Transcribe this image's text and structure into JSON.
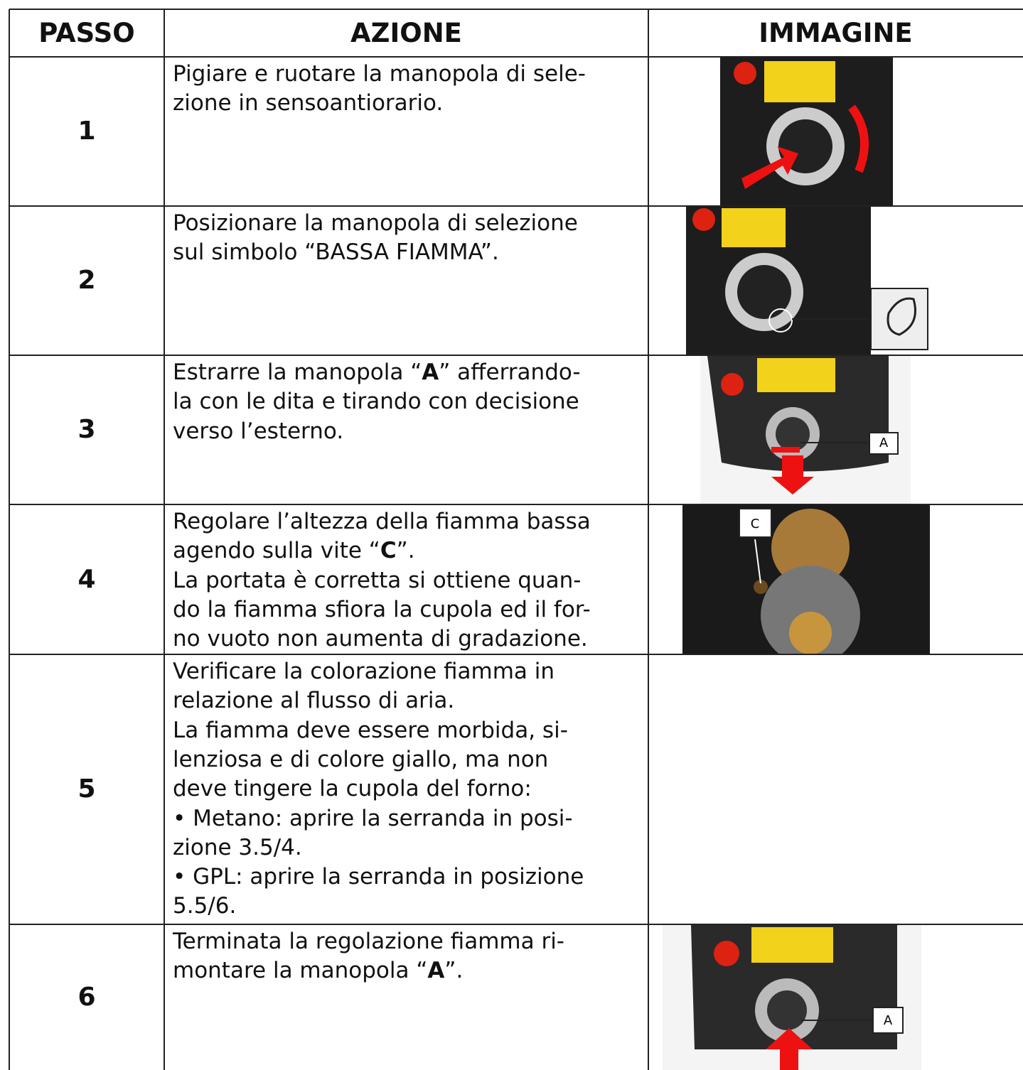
{
  "table": {
    "header": [
      "PASSO",
      "AZIONE",
      "IMMAGINE"
    ],
    "rows": [
      {
        "step": "1",
        "action": [
          "Pigiare e ruotare la manopola di sele-",
          "zione in sensoantiorario."
        ]
      },
      {
        "step": "2",
        "action": [
          "Posizionare la manopola di selezione",
          "sul simbolo “BASSA FIAMMA”."
        ]
      },
      {
        "step": "3",
        "action": [
          [
            "Estrarre la manopola “",
            "A",
            "” afferrando-"
          ],
          "la con le dita e tirando con decisione",
          "verso l’esterno."
        ],
        "image_label": "A"
      },
      {
        "step": "4",
        "action": [
          "Regolare l’altezza della fiamma bassa",
          [
            "agendo sulla vite “",
            "C",
            "”."
          ],
          "La portata è corretta si ottiene quan-",
          "do la fiamma sfiora la cupola ed il for-",
          "no vuoto non aumenta di gradazione."
        ],
        "image_label": "C"
      },
      {
        "step": "5",
        "action": [
          "Verificare la colorazione fiamma in",
          "relazione al flusso di aria.",
          "La fiamma deve essere morbida, si-",
          "lenziosa e di colore giallo, ma non",
          "deve tingere la cupola del forno:",
          "• Metano: aprire la serranda in posi-",
          "zione 3.5/4.",
          "• GPL: aprire la serranda in posizione",
          "5.5/6."
        ]
      },
      {
        "step": "6",
        "action": [
          "Terminata la regolazione fiamma ri-",
          [
            "montare la manopola “",
            "A",
            "”."
          ]
        ],
        "image_label": "A"
      }
    ]
  }
}
